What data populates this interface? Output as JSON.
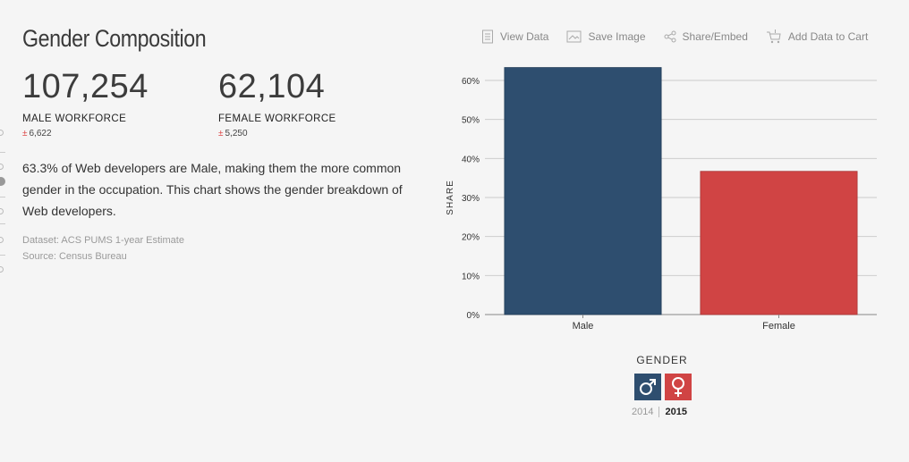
{
  "title": "Gender Composition",
  "stats": [
    {
      "value": "107,254",
      "label": "MALE WORKFORCE",
      "moe_symbol": "±",
      "moe": "6,622"
    },
    {
      "value": "62,104",
      "label": "FEMALE WORKFORCE",
      "moe_symbol": "±",
      "moe": "5,250"
    }
  ],
  "description": "63.3% of Web developers are Male, making them the more common gender in the occupation. This chart shows the gender breakdown of Web developers.",
  "dataset": "Dataset: ACS PUMS 1-year Estimate",
  "source": "Source: Census Bureau",
  "toolbar": {
    "view_data": "View Data",
    "save_image": "Save Image",
    "share_embed": "Share/Embed",
    "add_cart": "Add Data to Cart"
  },
  "legend": {
    "title": "GENDER",
    "years": [
      "2014",
      "2015"
    ],
    "active_year": "2015",
    "icons": [
      "male-symbol-icon",
      "female-symbol-icon"
    ]
  },
  "colors": {
    "male": "#2e4e6f",
    "female": "#d04444"
  },
  "chart_data": {
    "type": "bar",
    "categories": [
      "Male",
      "Female"
    ],
    "values": [
      63.3,
      36.7
    ],
    "ylabel": "SHARE",
    "ylim": [
      0,
      60
    ],
    "yticks": [
      "0%",
      "10%",
      "20%",
      "30%",
      "40%",
      "50%",
      "60%"
    ],
    "grid": true
  }
}
